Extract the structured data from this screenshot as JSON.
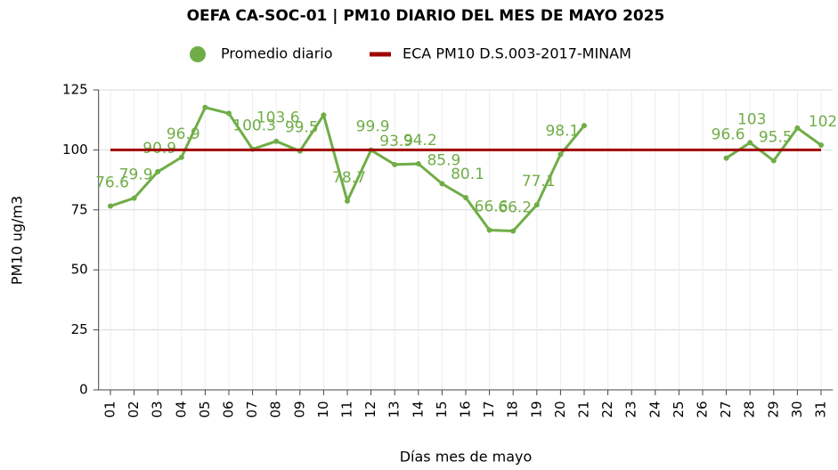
{
  "chart_data": {
    "type": "line",
    "title": "OEFA CA-SOC-01 | PM10 DIARIO DEL MES DE MAYO 2025",
    "x_label": "Días mes de mayo",
    "y_label": "PM10 ug/m3",
    "categories": [
      "01",
      "02",
      "03",
      "04",
      "05",
      "06",
      "07",
      "08",
      "09",
      "10",
      "11",
      "12",
      "13",
      "14",
      "15",
      "16",
      "17",
      "18",
      "19",
      "20",
      "21",
      "22",
      "23",
      "24",
      "25",
      "26",
      "27",
      "28",
      "29",
      "30",
      "31"
    ],
    "series": [
      {
        "name": "Promedio diario",
        "color": "#70ad47",
        "values": [
          76.6,
          79.9,
          90.9,
          96.9,
          117.7,
          115.2,
          100.3,
          103.6,
          99.5,
          114.5,
          78.7,
          99.9,
          93.9,
          94.2,
          85.9,
          80.1,
          66.6,
          66.2,
          77.1,
          98.1,
          110.1,
          null,
          null,
          null,
          null,
          null,
          96.6,
          103,
          95.5,
          109.1,
          102
        ],
        "value_labels": [
          "76.6",
          "79.9",
          "90.9",
          "96.9",
          null,
          null,
          "100.3",
          "103.6",
          "99.5",
          null,
          "78.7",
          "99.9",
          "93.9",
          "94.2",
          "85.9",
          "80.1",
          "66.6",
          "66.2",
          "77.1",
          "98.1",
          null,
          null,
          null,
          null,
          null,
          null,
          "96.6",
          "103",
          "95.5",
          null,
          "102"
        ]
      },
      {
        "name": "ECA PM10 D.S.003-2017-MINAM",
        "color": "#a00000",
        "values": [
          100,
          100,
          100,
          100,
          100,
          100,
          100,
          100,
          100,
          100,
          100,
          100,
          100,
          100,
          100,
          100,
          100,
          100,
          100,
          100,
          100,
          100,
          100,
          100,
          100,
          100,
          100,
          100,
          100,
          100,
          100
        ]
      }
    ],
    "ylim": [
      0,
      125
    ],
    "yticks": [
      0,
      25,
      50,
      75,
      100,
      125
    ],
    "grid": true
  }
}
